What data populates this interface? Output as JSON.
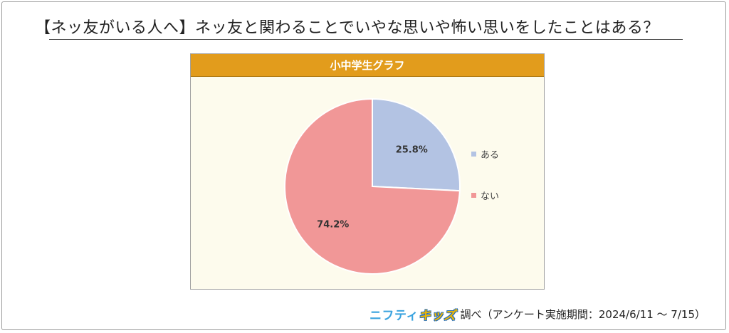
{
  "page": {
    "title": "【ネッ友がいる人へ】ネッ友と関わることでいやな思いや怖い思いをしたことはある？"
  },
  "chart_data": {
    "type": "pie",
    "title": "小中学生グラフ",
    "categories": [
      "ある",
      "ない"
    ],
    "values": [
      25.8,
      74.2
    ],
    "value_labels": [
      "25.8%",
      "74.2%"
    ],
    "colors": [
      "#b3c3e3",
      "#f19797"
    ],
    "legend_position": "right",
    "start_angle": "top, clockwise"
  },
  "footer": {
    "brand_part1": "ニフティ",
    "brand_part2": "キッズ",
    "text": "調べ（アンケート実施期間：2024/6/11 〜 7/15）"
  }
}
